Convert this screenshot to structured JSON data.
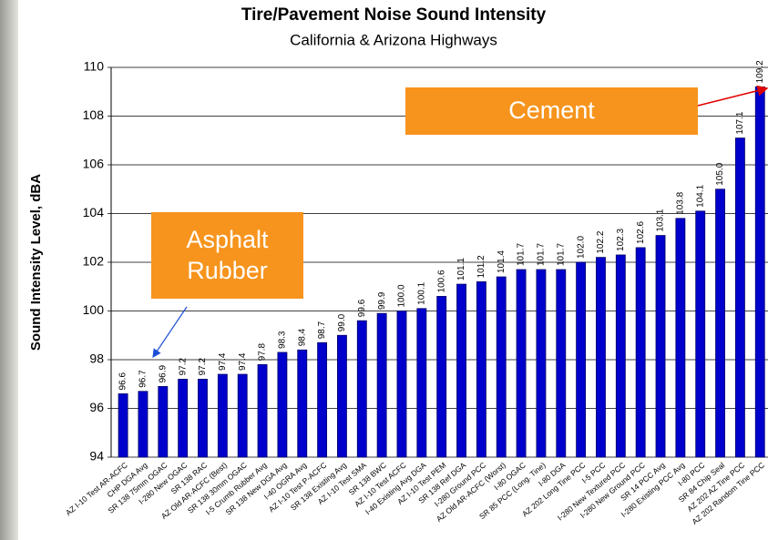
{
  "chart_data": {
    "type": "bar",
    "title": "Tire/Pavement Noise Sound Intensity",
    "subtitle": "California & Arizona Highways",
    "y_label": "Sound Intensity Level, dBA",
    "categories": [
      "AZ I-10 Test AR-ACFC",
      "CHP DGA Avg",
      "SR 138 75mm OGAC",
      "I-280 New OGAC",
      "SR 138 RAC",
      "AZ Old AR-ACFC (Best)",
      "SR 138 30mm OGAC",
      "I-5 Crumb Rubber Avg",
      "SR 138 New DGA Avg",
      "I-40 OGRA Avg",
      "AZ I-10 Test P-ACFC",
      "SR 138 Existing Avg",
      "AZ I-10 Test SMA",
      "SR 138 BWC",
      "AZ I-10 Test ACFC",
      "I-40 Existing Avg DGA",
      "AZ I-10 Test PEM",
      "SR 138 Ref DGA",
      "I-280 Ground PCC",
      "AZ Old AR-ACFC (Worst)",
      "I-80 OGAC",
      "SR 85 PCC (Long. Tine)",
      "I-80 DGA",
      "AZ 202 Long Tine PCC",
      "I-5 PCC",
      "I-280 New Textured PCC",
      "I-280 New Ground PCC",
      "SR 14 PCC Avg",
      "I-280 Existing PCC Avg",
      "I-80 PCC",
      "SR 84 Chip Seal",
      "AZ 202 AZ Tine PCC",
      "AZ 202 Random Tine PCC"
    ],
    "values": [
      96.6,
      96.7,
      96.9,
      97.2,
      97.2,
      97.4,
      97.4,
      97.8,
      98.3,
      98.4,
      98.7,
      99.0,
      99.6,
      99.9,
      100.0,
      100.1,
      100.6,
      101.1,
      101.2,
      101.4,
      101.7,
      101.7,
      101.7,
      102.0,
      102.2,
      102.3,
      102.6,
      103.1,
      103.8,
      104.1,
      105.0,
      107.1,
      109.2
    ],
    "value_labels": [
      "96.6",
      "96.7",
      "96.9",
      "97.2",
      "97.2",
      "97.4",
      "97.4",
      "97.8",
      "98.3",
      "98.4",
      "98.7",
      "99.0",
      "99.6",
      "99.9",
      "100.0",
      "100.1",
      "100.6",
      "101.1",
      "101.2",
      "101.4",
      "101.7",
      "101.7",
      "101.7",
      "102.0",
      "102.2",
      "102.3",
      "102.6",
      "103.1",
      "103.8",
      "104.1",
      "105.0",
      "107.1",
      "109.2"
    ],
    "color": "#0000cc",
    "ylim": [
      94,
      110
    ],
    "yticks": [
      94,
      96,
      98,
      100,
      102,
      104,
      106,
      108,
      110
    ],
    "grid": true,
    "annotations": [
      {
        "text": "Cement"
      },
      {
        "text": "Asphalt Rubber"
      }
    ]
  }
}
